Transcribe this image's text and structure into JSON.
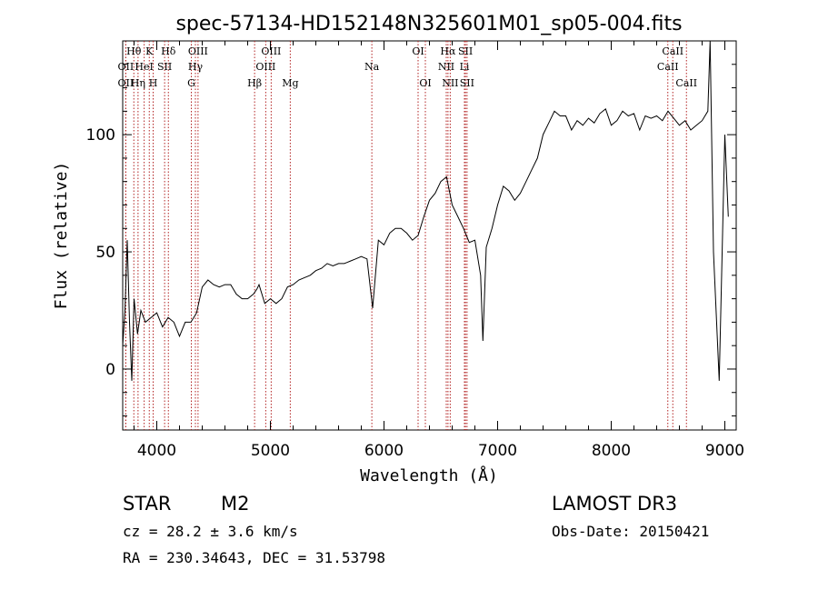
{
  "chart_data": {
    "type": "line",
    "title": "spec-57134-HD152148N325601M01_sp05-004.fits",
    "xlabel": "Wavelength (Å)",
    "ylabel": "Flux (relative)",
    "xlim": [
      3700,
      9100
    ],
    "ylim": [
      -26,
      140
    ],
    "xticks": [
      4000,
      5000,
      6000,
      7000,
      8000,
      9000
    ],
    "yticks": [
      0,
      50,
      100
    ],
    "grid": false,
    "legend": "none",
    "line_color": "#000000",
    "marker_color": "#b22222",
    "series": [
      {
        "x": [
          3700,
          3720,
          3740,
          3760,
          3780,
          3800,
          3830,
          3860,
          3900,
          3950,
          4000,
          4050,
          4100,
          4150,
          4200,
          4250,
          4300,
          4350,
          4400,
          4450,
          4500,
          4550,
          4600,
          4650,
          4700,
          4750,
          4800,
          4850,
          4880,
          4900,
          4950,
          5000,
          5050,
          5100,
          5150,
          5200,
          5250,
          5300,
          5350,
          5400,
          5450,
          5500,
          5550,
          5600,
          5650,
          5700,
          5750,
          5800,
          5850,
          5900,
          5950,
          6000,
          6050,
          6100,
          6150,
          6200,
          6250,
          6300,
          6350,
          6400,
          6450,
          6500,
          6550,
          6600,
          6650,
          6700,
          6750,
          6800,
          6850,
          6870,
          6900,
          6950,
          7000,
          7050,
          7100,
          7150,
          7200,
          7250,
          7300,
          7350,
          7400,
          7450,
          7500,
          7550,
          7600,
          7650,
          7700,
          7750,
          7800,
          7850,
          7900,
          7950,
          8000,
          8050,
          8100,
          8150,
          8200,
          8250,
          8300,
          8350,
          8400,
          8450,
          8500,
          8550,
          8600,
          8650,
          8700,
          8750,
          8800,
          8850,
          8870,
          8900,
          8950,
          9000,
          9030
        ],
        "y": [
          10,
          25,
          55,
          20,
          -5,
          30,
          15,
          25,
          20,
          22,
          24,
          18,
          22,
          20,
          14,
          20,
          20,
          24,
          35,
          38,
          36,
          35,
          36,
          36,
          32,
          30,
          30,
          32,
          34,
          36,
          28,
          30,
          28,
          30,
          35,
          36,
          38,
          39,
          40,
          42,
          43,
          45,
          44,
          45,
          45,
          46,
          47,
          48,
          47,
          26,
          55,
          53,
          58,
          60,
          60,
          58,
          55,
          57,
          65,
          72,
          75,
          80,
          82,
          70,
          65,
          60,
          54,
          55,
          40,
          12,
          52,
          60,
          70,
          78,
          76,
          72,
          75,
          80,
          85,
          90,
          100,
          105,
          110,
          108,
          108,
          102,
          106,
          104,
          107,
          105,
          109,
          111,
          104,
          106,
          110,
          108,
          109,
          102,
          108,
          107,
          108,
          106,
          110,
          107,
          104,
          106,
          102,
          104,
          106,
          110,
          140,
          50,
          -5,
          100,
          65
        ]
      }
    ],
    "spectral_lines": [
      {
        "label": "Hθ",
        "x": 3798,
        "row": 0
      },
      {
        "label": "OII",
        "x": 3727,
        "row": 1
      },
      {
        "label": "OII",
        "x": 3727,
        "row": 2
      },
      {
        "label": "Hη",
        "x": 3835,
        "row": 2
      },
      {
        "label": "HeI",
        "x": 3889,
        "row": 1
      },
      {
        "label": "K",
        "x": 3934,
        "row": 0
      },
      {
        "label": "H",
        "x": 3968,
        "row": 2
      },
      {
        "label": "SII",
        "x": 4069,
        "row": 1
      },
      {
        "label": "Hδ",
        "x": 4102,
        "row": 0
      },
      {
        "label": "G",
        "x": 4304,
        "row": 2
      },
      {
        "label": "Hγ",
        "x": 4340,
        "row": 1
      },
      {
        "label": "OIII",
        "x": 4363,
        "row": 0
      },
      {
        "label": "Hβ",
        "x": 4861,
        "row": 2
      },
      {
        "label": "OIII",
        "x": 4959,
        "row": 1
      },
      {
        "label": "OIII",
        "x": 5007,
        "row": 0
      },
      {
        "label": "Mg",
        "x": 5175,
        "row": 2
      },
      {
        "label": "Na",
        "x": 5893,
        "row": 1
      },
      {
        "label": "OI",
        "x": 6300,
        "row": 0
      },
      {
        "label": "OI",
        "x": 6364,
        "row": 2
      },
      {
        "label": "NII",
        "x": 6548,
        "row": 1
      },
      {
        "label": "Hα",
        "x": 6563,
        "row": 0
      },
      {
        "label": "NII",
        "x": 6583,
        "row": 2
      },
      {
        "label": "Li",
        "x": 6708,
        "row": 1
      },
      {
        "label": "SII",
        "x": 6717,
        "row": 0
      },
      {
        "label": "SII",
        "x": 6731,
        "row": 2
      },
      {
        "label": "CaII",
        "x": 8498,
        "row": 1
      },
      {
        "label": "CaII",
        "x": 8542,
        "row": 0
      },
      {
        "label": "CaII",
        "x": 8662,
        "row": 2
      }
    ]
  },
  "info": {
    "object_class": "STAR",
    "subclass": "M2",
    "survey": "LAMOST DR3",
    "redshift": "cz = 28.2 ± 3.6 km/s",
    "obs_date": "Obs-Date: 20150421",
    "coords": "RA = 230.34643, DEC =  31.53798"
  }
}
